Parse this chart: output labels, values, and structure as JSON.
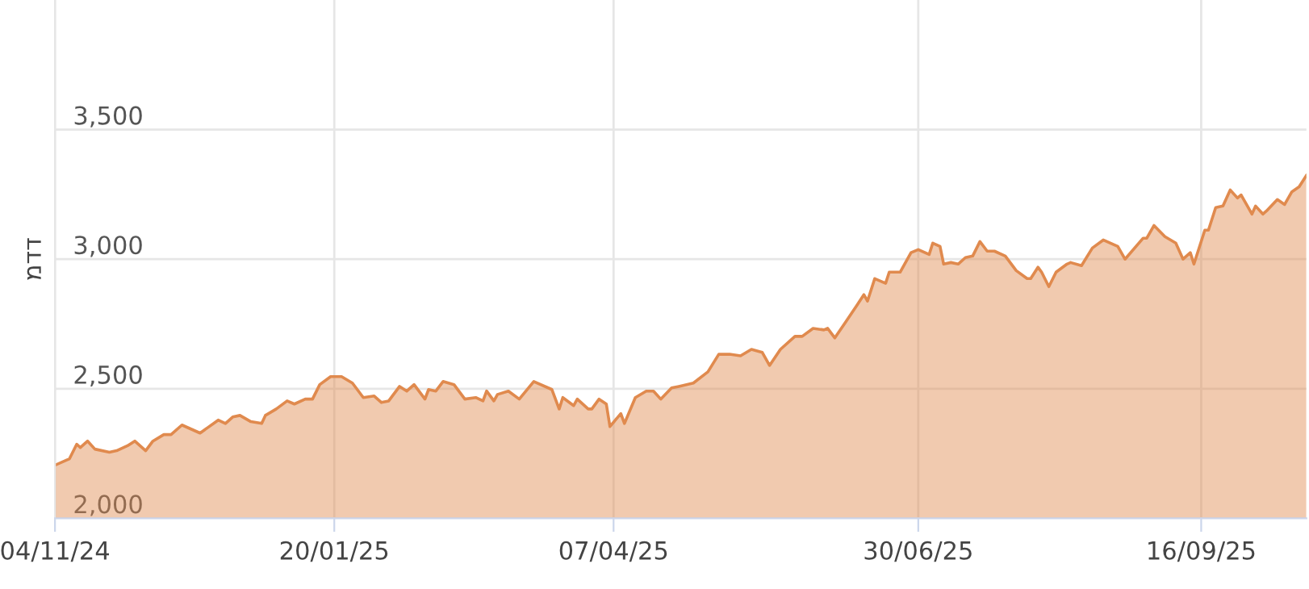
{
  "chart_data": {
    "type": "area",
    "ylabel": "מדד",
    "x": [
      "2024-11-04",
      "2024-11-08",
      "2024-11-10",
      "2024-11-11",
      "2024-11-13",
      "2024-11-15",
      "2024-11-19",
      "2024-11-21",
      "2024-11-24",
      "2024-11-26",
      "2024-11-29",
      "2024-12-01",
      "2024-12-04",
      "2024-12-06",
      "2024-12-09",
      "2024-12-14",
      "2024-12-19",
      "2024-12-21",
      "2024-12-23",
      "2024-12-25",
      "2024-12-28",
      "2024-12-31",
      "2025-01-01",
      "2025-01-04",
      "2025-01-07",
      "2025-01-09",
      "2025-01-12",
      "2025-01-14",
      "2025-01-16",
      "2025-01-19",
      "2025-01-22",
      "2025-01-25",
      "2025-01-28",
      "2025-01-31",
      "2025-02-02",
      "2025-02-04",
      "2025-02-07",
      "2025-02-09",
      "2025-02-11",
      "2025-02-14",
      "2025-02-15",
      "2025-02-17",
      "2025-02-19",
      "2025-02-22",
      "2025-02-25",
      "2025-02-28",
      "2025-03-02",
      "2025-03-03",
      "2025-03-05",
      "2025-03-06",
      "2025-03-09",
      "2025-03-12",
      "2025-03-16",
      "2025-03-21",
      "2025-03-23",
      "2025-03-24",
      "2025-03-27",
      "2025-03-28",
      "2025-03-31",
      "2025-04-01",
      "2025-04-03",
      "2025-04-05",
      "2025-04-06",
      "2025-04-09",
      "2025-04-10",
      "2025-04-13",
      "2025-04-16",
      "2025-04-18",
      "2025-04-20",
      "2025-04-23",
      "2025-04-25",
      "2025-04-29",
      "2025-05-03",
      "2025-05-06",
      "2025-05-09",
      "2025-05-12",
      "2025-05-15",
      "2025-05-18",
      "2025-05-20",
      "2025-05-23",
      "2025-05-27",
      "2025-05-29",
      "2025-06-01",
      "2025-06-04",
      "2025-06-05",
      "2025-06-07",
      "2025-06-10",
      "2025-06-13",
      "2025-06-15",
      "2025-06-16",
      "2025-06-18",
      "2025-06-21",
      "2025-06-22",
      "2025-06-25",
      "2025-06-28",
      "2025-06-30",
      "2025-07-03",
      "2025-07-04",
      "2025-07-06",
      "2025-07-07",
      "2025-07-09",
      "2025-07-11",
      "2025-07-13",
      "2025-07-15",
      "2025-07-17",
      "2025-07-19",
      "2025-07-21",
      "2025-07-24",
      "2025-07-27",
      "2025-07-30",
      "2025-07-31",
      "2025-08-02",
      "2025-08-03",
      "2025-08-05",
      "2025-08-07",
      "2025-08-10",
      "2025-08-11",
      "2025-08-14",
      "2025-08-17",
      "2025-08-20",
      "2025-08-24",
      "2025-08-26",
      "2025-08-31",
      "2025-09-01",
      "2025-09-03",
      "2025-09-06",
      "2025-09-09",
      "2025-09-11",
      "2025-09-13",
      "2025-09-14",
      "2025-09-17",
      "2025-09-18",
      "2025-09-20",
      "2025-09-22",
      "2025-09-24",
      "2025-09-26",
      "2025-09-27",
      "2025-09-30",
      "2025-10-01",
      "2025-10-03",
      "2025-10-04",
      "2025-10-07",
      "2025-10-09",
      "2025-10-11",
      "2025-10-13",
      "2025-10-15"
    ],
    "series": [
      {
        "color": "#e08a4e",
        "values": [
          2205,
          2230,
          2286,
          2273,
          2298,
          2267,
          2255,
          2261,
          2280,
          2298,
          2261,
          2298,
          2323,
          2323,
          2360,
          2329,
          2379,
          2366,
          2391,
          2397,
          2373,
          2366,
          2397,
          2422,
          2453,
          2441,
          2460,
          2460,
          2516,
          2547,
          2547,
          2522,
          2466,
          2472,
          2447,
          2453,
          2509,
          2491,
          2516,
          2460,
          2497,
          2491,
          2528,
          2516,
          2460,
          2466,
          2453,
          2491,
          2453,
          2478,
          2491,
          2460,
          2528,
          2497,
          2422,
          2466,
          2435,
          2460,
          2422,
          2422,
          2460,
          2441,
          2354,
          2404,
          2366,
          2466,
          2491,
          2491,
          2460,
          2503,
          2509,
          2522,
          2565,
          2633,
          2633,
          2627,
          2652,
          2640,
          2590,
          2652,
          2702,
          2702,
          2733,
          2727,
          2733,
          2696,
          2758,
          2820,
          2863,
          2838,
          2925,
          2907,
          2950,
          2950,
          3025,
          3037,
          3018,
          3062,
          3049,
          2981,
          2987,
          2981,
          3006,
          3012,
          3068,
          3031,
          3031,
          3012,
          2956,
          2925,
          2925,
          2969,
          2950,
          2894,
          2950,
          2981,
          2987,
          2975,
          3043,
          3074,
          3049,
          3000,
          3081,
          3081,
          3130,
          3087,
          3062,
          3000,
          3025,
          2981,
          3112,
          3112,
          3199,
          3205,
          3267,
          3236,
          3248,
          3174,
          3205,
          3174,
          3186,
          3230,
          3211,
          3260,
          3279,
          3323
        ]
      }
    ],
    "xlim": [
      "2024-11-04",
      "2025-10-15"
    ],
    "xticks": [
      {
        "value": "2024-11-04",
        "label": "04/11/24"
      },
      {
        "value": "2025-01-20",
        "label": "20/01/25"
      },
      {
        "value": "2025-04-07",
        "label": "07/04/25"
      },
      {
        "value": "2025-06-30",
        "label": "30/06/25"
      },
      {
        "value": "2025-09-16",
        "label": "16/09/25"
      }
    ],
    "ylim": [
      2000,
      4000
    ],
    "yticks": [
      {
        "value": 2000,
        "label": "2,000"
      },
      {
        "value": 2500,
        "label": "2,500"
      },
      {
        "value": 3000,
        "label": "3,000"
      },
      {
        "value": 3500,
        "label": "3,500"
      }
    ],
    "grid": true
  }
}
